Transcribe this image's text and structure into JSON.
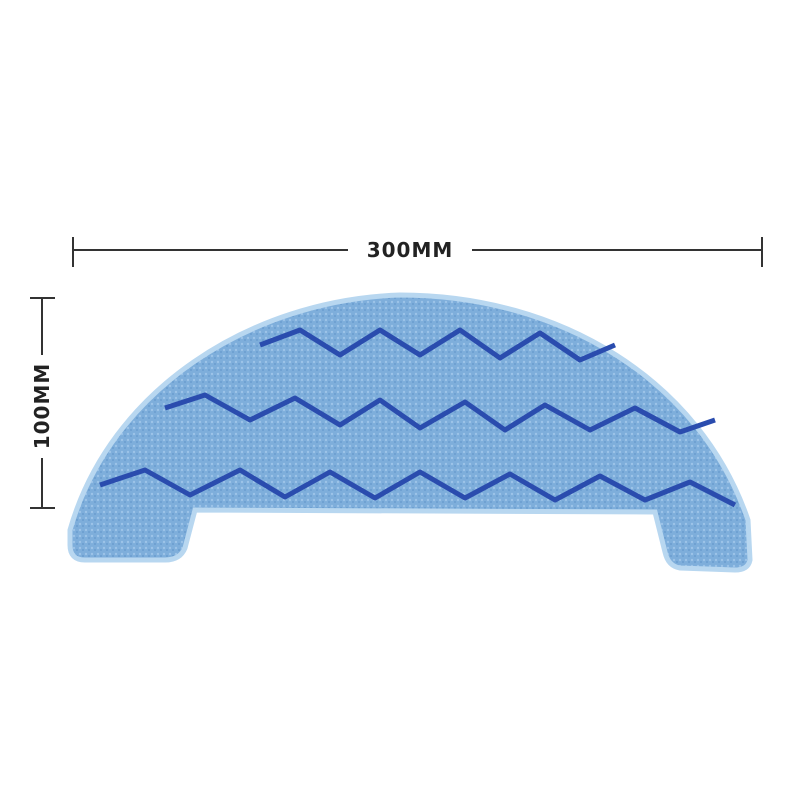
{
  "dimensions": {
    "width": "300MM",
    "height": "100MM"
  }
}
